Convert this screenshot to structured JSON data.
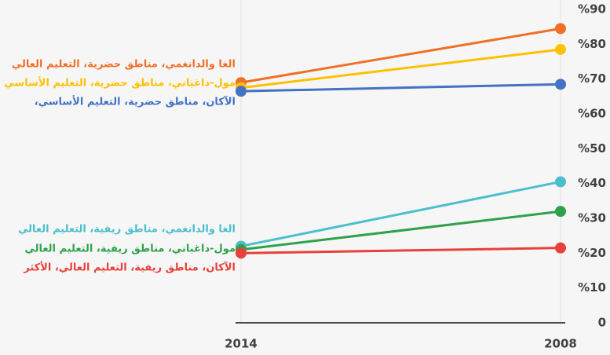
{
  "chart_data": {
    "type": "line",
    "categories": [
      "2014",
      "2008"
    ],
    "series": [
      {
        "name": "الغا والدانغمي، مناطق حضرية، التعليم العالي",
        "color": "#f07028",
        "values": [
          69,
          84.5
        ]
      },
      {
        "name": "مول-داغباني، مناطق حضرية، التعليم الأساسي",
        "color": "#ffc000",
        "values": [
          67.5,
          78.5
        ]
      },
      {
        "name": "الآكان، مناطق حضرية، التعليم الأساسي،",
        "color": "#4472c4",
        "values": [
          66.5,
          68.5
        ]
      },
      {
        "name": "الغا والدانغمي، مناطق ريفية، التعليم العالي",
        "color": "#4bbfcb",
        "values": [
          22,
          40.5
        ]
      },
      {
        "name": "مول-داغباني، مناطق ريفية، التعليم العالي",
        "color": "#2ea24a",
        "values": [
          21,
          32
        ]
      },
      {
        "name": "الآكان، مناطق ريفية، التعليم العالي، الأكثر",
        "color": "#e8403a",
        "values": [
          20,
          21.5
        ]
      }
    ],
    "ylim": [
      0,
      90
    ],
    "yticks": [
      0,
      {
        "value": 10,
        "label": "%10"
      },
      {
        "value": 20,
        "label": "%20"
      },
      {
        "value": 30,
        "label": "%30"
      },
      {
        "value": 40,
        "label": "%40"
      },
      {
        "value": 50,
        "label": "%50"
      },
      {
        "value": 60,
        "label": "%60"
      },
      {
        "value": 70,
        "label": "%70"
      },
      {
        "value": 80,
        "label": "%80"
      },
      {
        "value": 90,
        "label": "%90"
      }
    ]
  }
}
